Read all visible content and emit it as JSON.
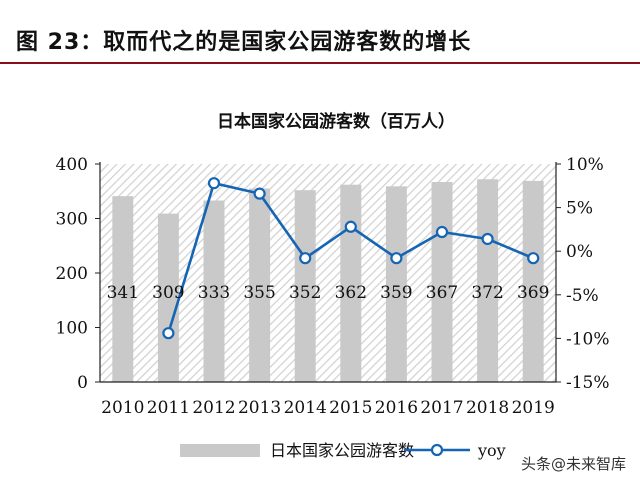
{
  "figure": {
    "title": "图 23：取而代之的是国家公园游客数的增长"
  },
  "watermark": "头条@未来智库",
  "colors": {
    "bar": "#c9c9c9",
    "line": "#1565b4",
    "rule": "#8a0e17"
  },
  "chart_data": {
    "type": "bar",
    "title": "日本国家公园游客数（百万人）",
    "categories": [
      "2010",
      "2011",
      "2012",
      "2013",
      "2014",
      "2015",
      "2016",
      "2017",
      "2018",
      "2019"
    ],
    "series": [
      {
        "name": "日本国家公园游客数",
        "type": "bar",
        "axis": "left",
        "values": [
          341,
          309,
          333,
          355,
          352,
          362,
          359,
          367,
          372,
          369
        ]
      },
      {
        "name": "yoy",
        "type": "line",
        "axis": "right",
        "marker": "circle",
        "values": [
          null,
          -9.4,
          7.8,
          6.6,
          -0.8,
          2.8,
          -0.8,
          2.2,
          1.4,
          -0.8
        ]
      }
    ],
    "y_left": {
      "min": 0,
      "max": 400,
      "ticks": [
        0,
        100,
        200,
        300,
        400
      ]
    },
    "y_right": {
      "min": -15,
      "max": 10,
      "ticks": [
        "-15%",
        "-10%",
        "-5%",
        "0%",
        "5%",
        "10%"
      ]
    },
    "legend": {
      "position": "bottom"
    },
    "grid": false,
    "background_pattern": "diagonal-hatch"
  }
}
